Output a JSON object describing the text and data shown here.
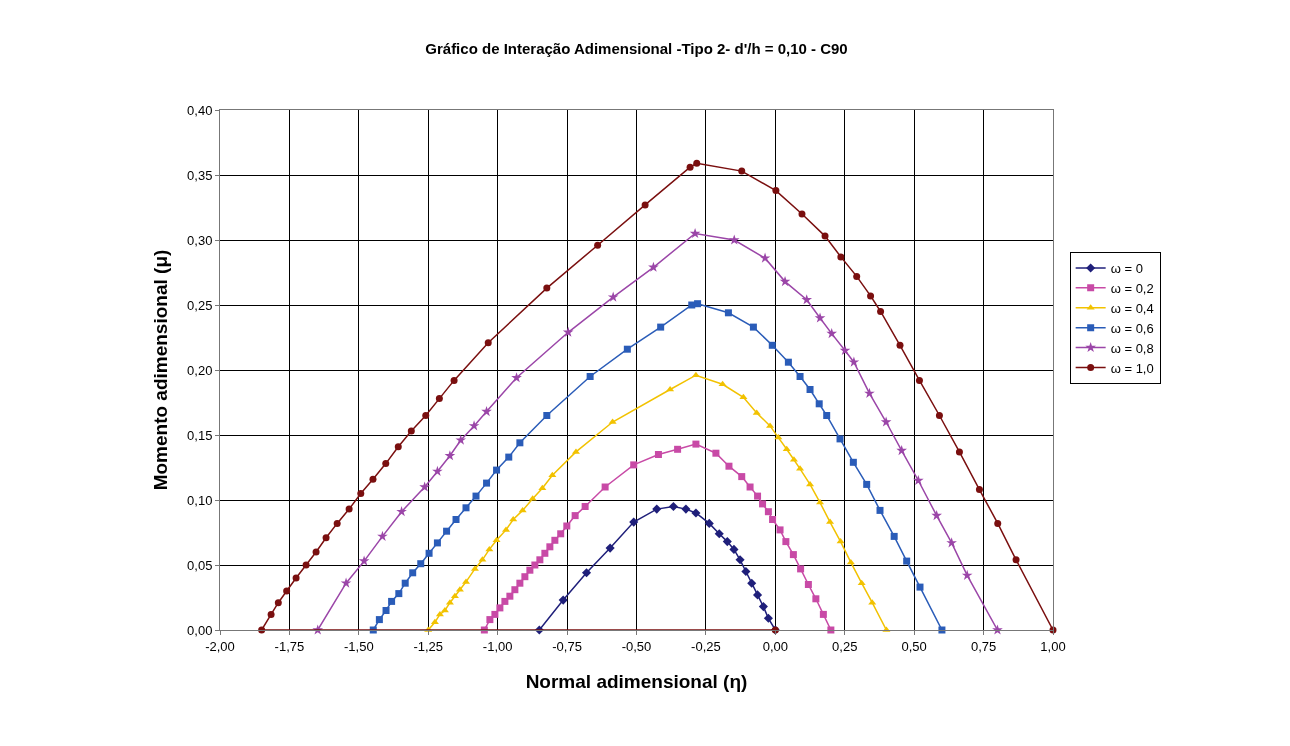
{
  "chart_data": {
    "type": "line",
    "title": "Gráfico de Interação Adimensional -Tipo 2- d'/h = 0,10 - C90",
    "xlabel": "Normal adimensional (η)",
    "ylabel": "Momento adimensional (μ)",
    "xlim": [
      -2,
      1
    ],
    "xticks": [
      {
        "value": -2,
        "label": "-2,00"
      },
      {
        "value": -1.75,
        "label": "-1,75"
      },
      {
        "value": -1.5,
        "label": "-1,50"
      },
      {
        "value": -1.25,
        "label": "-1,25"
      },
      {
        "value": -1,
        "label": "-1,00"
      },
      {
        "value": -0.75,
        "label": "-0,75"
      },
      {
        "value": -0.5,
        "label": "-0,50"
      },
      {
        "value": -0.25,
        "label": "-0,25"
      },
      {
        "value": 0,
        "label": "0,00"
      },
      {
        "value": 0.25,
        "label": "0,25"
      },
      {
        "value": 0.5,
        "label": "0,50"
      },
      {
        "value": 0.75,
        "label": "0,75"
      },
      {
        "value": 1,
        "label": "1,00"
      }
    ],
    "ylim": [
      0,
      0.4
    ],
    "yticks": [
      {
        "value": 0,
        "label": "0,00"
      },
      {
        "value": 0.05,
        "label": "0,05"
      },
      {
        "value": 0.1,
        "label": "0,10"
      },
      {
        "value": 0.15,
        "label": "0,15"
      },
      {
        "value": 0.2,
        "label": "0,20"
      },
      {
        "value": 0.25,
        "label": "0,25"
      },
      {
        "value": 0.3,
        "label": "0,30"
      },
      {
        "value": 0.35,
        "label": "0,35"
      },
      {
        "value": 0.4,
        "label": "0,40"
      }
    ],
    "grid": true,
    "legend": "right",
    "line_style": "solid",
    "series": [
      {
        "name": "ω = 0",
        "color": "#1f1f7a",
        "marker": "diamond",
        "x": [
          -0.85,
          -0.764,
          -0.68,
          -0.595,
          -0.51,
          -0.427,
          -0.367,
          -0.322,
          -0.286,
          -0.238,
          -0.202,
          -0.173,
          -0.149,
          -0.127,
          -0.106,
          -0.085,
          -0.064,
          -0.043,
          -0.025,
          0
        ],
        "values": [
          0,
          0.023,
          0.044,
          0.063,
          0.083,
          0.093,
          0.095,
          0.093,
          0.09,
          0.082,
          0.074,
          0.068,
          0.062,
          0.054,
          0.045,
          0.036,
          0.027,
          0.018,
          0.009,
          0
        ]
      },
      {
        "name": "ω = 0,2",
        "color": "#c84aa6",
        "marker": "square",
        "x": [
          -1.048,
          -1.028,
          -1.01,
          -0.992,
          -0.974,
          -0.956,
          -0.938,
          -0.92,
          -0.902,
          -0.884,
          -0.866,
          -0.848,
          -0.83,
          -0.812,
          -0.794,
          -0.773,
          -0.751,
          -0.721,
          -0.685,
          -0.613,
          -0.51,
          -0.421,
          -0.352,
          -0.286,
          -0.214,
          -0.167,
          -0.121,
          -0.091,
          -0.064,
          -0.046,
          -0.025,
          -0.01,
          0.017,
          0.038,
          0.065,
          0.091,
          0.119,
          0.146,
          0.173,
          0.2
        ],
        "values": [
          0,
          0.008,
          0.012,
          0.017,
          0.022,
          0.026,
          0.031,
          0.036,
          0.041,
          0.046,
          0.05,
          0.054,
          0.059,
          0.064,
          0.069,
          0.074,
          0.08,
          0.088,
          0.095,
          0.11,
          0.127,
          0.135,
          0.139,
          0.143,
          0.136,
          0.126,
          0.118,
          0.11,
          0.103,
          0.097,
          0.091,
          0.085,
          0.077,
          0.068,
          0.058,
          0.047,
          0.035,
          0.024,
          0.012,
          0
        ]
      },
      {
        "name": "ω = 0,4",
        "color": "#f2c200",
        "marker": "triangle",
        "x": [
          -1.25,
          -1.226,
          -1.208,
          -1.19,
          -1.172,
          -1.154,
          -1.136,
          -1.114,
          -1.082,
          -1.055,
          -1.03,
          -1.004,
          -0.97,
          -0.944,
          -0.91,
          -0.874,
          -0.839,
          -0.803,
          -0.718,
          -0.586,
          -0.379,
          -0.286,
          -0.19,
          -0.115,
          -0.067,
          -0.019,
          0.011,
          0.041,
          0.067,
          0.089,
          0.125,
          0.161,
          0.197,
          0.235,
          0.272,
          0.311,
          0.349,
          0.4
        ],
        "values": [
          0,
          0.006,
          0.012,
          0.015,
          0.021,
          0.026,
          0.031,
          0.037,
          0.047,
          0.054,
          0.062,
          0.069,
          0.077,
          0.085,
          0.092,
          0.101,
          0.109,
          0.119,
          0.137,
          0.16,
          0.185,
          0.196,
          0.189,
          0.179,
          0.167,
          0.157,
          0.148,
          0.139,
          0.131,
          0.124,
          0.112,
          0.098,
          0.083,
          0.068,
          0.052,
          0.036,
          0.021,
          0
        ]
      },
      {
        "name": "ω = 0,6",
        "color": "#2a5cb8",
        "marker": "square",
        "x": [
          -1.448,
          -1.426,
          -1.402,
          -1.382,
          -1.356,
          -1.333,
          -1.306,
          -1.277,
          -1.247,
          -1.217,
          -1.184,
          -1.15,
          -1.114,
          -1.078,
          -1.04,
          -1.004,
          -0.96,
          -0.92,
          -0.823,
          -0.667,
          -0.533,
          -0.413,
          -0.301,
          -0.28,
          -0.169,
          -0.079,
          -0.011,
          0.047,
          0.089,
          0.125,
          0.158,
          0.185,
          0.233,
          0.281,
          0.329,
          0.377,
          0.428,
          0.473,
          0.521,
          0.6
        ],
        "values": [
          0,
          0.008,
          0.015,
          0.022,
          0.028,
          0.036,
          0.044,
          0.051,
          0.059,
          0.067,
          0.076,
          0.085,
          0.094,
          0.103,
          0.113,
          0.123,
          0.133,
          0.144,
          0.165,
          0.195,
          0.216,
          0.233,
          0.25,
          0.251,
          0.244,
          0.233,
          0.219,
          0.206,
          0.195,
          0.185,
          0.174,
          0.165,
          0.147,
          0.129,
          0.112,
          0.092,
          0.072,
          0.053,
          0.033,
          0
        ]
      },
      {
        "name": "ω = 0,8",
        "color": "#9b46a8",
        "marker": "star",
        "x": [
          -1.648,
          -1.546,
          -1.481,
          -1.415,
          -1.346,
          -1.263,
          -1.217,
          -1.172,
          -1.133,
          -1.085,
          -1.04,
          -0.932,
          -0.746,
          -0.584,
          -0.439,
          -0.289,
          -0.148,
          -0.037,
          0.035,
          0.113,
          0.161,
          0.203,
          0.251,
          0.283,
          0.339,
          0.399,
          0.455,
          0.515,
          0.581,
          0.635,
          0.691,
          0.8
        ],
        "values": [
          0,
          0.036,
          0.053,
          0.072,
          0.091,
          0.11,
          0.122,
          0.134,
          0.146,
          0.157,
          0.168,
          0.194,
          0.229,
          0.256,
          0.279,
          0.305,
          0.3,
          0.286,
          0.268,
          0.254,
          0.24,
          0.228,
          0.215,
          0.206,
          0.182,
          0.16,
          0.138,
          0.115,
          0.088,
          0.067,
          0.042,
          0
        ]
      },
      {
        "name": "ω = 1,0",
        "color": "#7a0f0f",
        "marker": "circle",
        "x": [
          0,
          -1.85,
          -1.816,
          -1.79,
          -1.76,
          -1.726,
          -1.69,
          -1.654,
          -1.618,
          -1.578,
          -1.535,
          -1.493,
          -1.449,
          -1.403,
          -1.358,
          -1.311,
          -1.259,
          -1.21,
          -1.157,
          -1.034,
          -0.823,
          -0.64,
          -0.469,
          -0.307,
          -0.283,
          -0.121,
          0.002,
          0.096,
          0.179,
          0.236,
          0.293,
          0.343,
          0.379,
          0.449,
          0.519,
          0.591,
          0.663,
          0.735,
          0.801,
          0.867,
          1
        ],
        "values": [
          0,
          0,
          0.012,
          0.021,
          0.03,
          0.04,
          0.05,
          0.06,
          0.071,
          0.082,
          0.093,
          0.105,
          0.116,
          0.128,
          0.141,
          0.153,
          0.165,
          0.178,
          0.192,
          0.221,
          0.263,
          0.296,
          0.327,
          0.356,
          0.359,
          0.353,
          0.338,
          0.32,
          0.303,
          0.287,
          0.272,
          0.257,
          0.245,
          0.219,
          0.192,
          0.165,
          0.137,
          0.108,
          0.082,
          0.054,
          0
        ]
      }
    ]
  }
}
